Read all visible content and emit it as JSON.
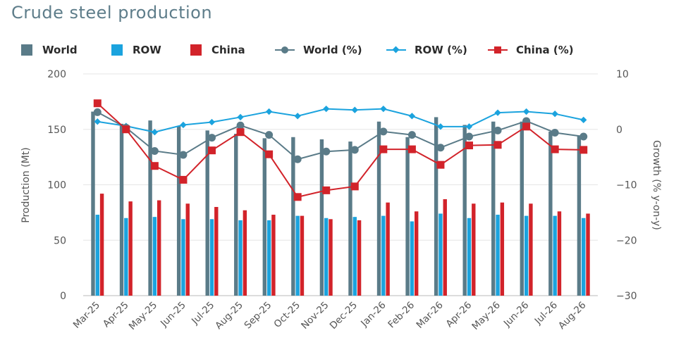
{
  "title": "Crude steel production",
  "colors": {
    "world": "#5a7b88",
    "row": "#1ba3de",
    "china": "#d2232a",
    "grid": "#e6e6e6",
    "axis_text": "#555555",
    "title": "#5e7d8a"
  },
  "legend": [
    {
      "label": "World",
      "kind": "bar",
      "color": "#5a7b88"
    },
    {
      "label": "ROW",
      "kind": "bar",
      "color": "#1ba3de"
    },
    {
      "label": "China",
      "kind": "bar",
      "color": "#d2232a"
    },
    {
      "label": "World (%)",
      "kind": "line",
      "marker": "circle",
      "color": "#5a7b88"
    },
    {
      "label": "ROW (%)",
      "kind": "line",
      "marker": "diamond",
      "color": "#1ba3de"
    },
    {
      "label": "China (%)",
      "kind": "line",
      "marker": "square",
      "color": "#d2232a"
    }
  ],
  "chart_data": {
    "type": "bar",
    "title": "Crude steel production",
    "categories": [
      "Mar-25",
      "Apr-25",
      "May-25",
      "Jun-25",
      "Jul-25",
      "Aug-25",
      "Sep-25",
      "Oct-25",
      "Nov-25",
      "Dec-25",
      "Jan-26",
      "Feb-26",
      "Mar-26",
      "Apr-26",
      "May-26",
      "Jun-26",
      "Jul-26",
      "Aug-26"
    ],
    "ylabel": "Production (Mt)",
    "y2label": "Growth (% y-on-y)",
    "ylim": [
      0,
      200
    ],
    "yticks": [
      "0",
      "50",
      "100",
      "150",
      "200"
    ],
    "y2lim": [
      -30,
      10
    ],
    "y2ticks": [
      "−30",
      "−20",
      "−10",
      "0",
      "10"
    ],
    "grid": true,
    "legend_position": "top",
    "series": [
      {
        "name": "World",
        "type": "bar",
        "axis": "left",
        "values": [
          166,
          155,
          158,
          153,
          149,
          146,
          142,
          143,
          141,
          139,
          157,
          143,
          161,
          154,
          157,
          157,
          148,
          144
        ]
      },
      {
        "name": "ROW",
        "type": "bar",
        "axis": "left",
        "values": [
          73,
          70,
          71,
          69,
          69,
          68,
          68,
          72,
          70,
          71,
          72,
          67,
          74,
          70,
          73,
          72,
          72,
          70
        ]
      },
      {
        "name": "China",
        "type": "bar",
        "axis": "left",
        "values": [
          92,
          85,
          86,
          83,
          80,
          77,
          73,
          72,
          69,
          68,
          84,
          76,
          87,
          83,
          84,
          83,
          76,
          74
        ]
      },
      {
        "name": "World (%)",
        "type": "line",
        "axis": "right",
        "marker": "circle",
        "values": [
          3.1,
          0.3,
          -3.9,
          -4.6,
          -1.5,
          0.7,
          -1.0,
          -5.4,
          -4.0,
          -3.7,
          -0.4,
          -1.0,
          -3.3,
          -1.3,
          -0.2,
          1.5,
          -0.6,
          -1.3
        ]
      },
      {
        "name": "ROW (%)",
        "type": "line",
        "axis": "right",
        "marker": "diamond",
        "values": [
          1.4,
          0.6,
          -0.5,
          0.8,
          1.3,
          2.2,
          3.2,
          2.4,
          3.7,
          3.5,
          3.7,
          2.4,
          0.5,
          0.5,
          3.0,
          3.2,
          2.8,
          1.7
        ]
      },
      {
        "name": "China (%)",
        "type": "line",
        "axis": "right",
        "marker": "square",
        "values": [
          4.7,
          0.0,
          -6.6,
          -9.1,
          -3.8,
          -0.5,
          -4.5,
          -12.2,
          -11.0,
          -10.3,
          -3.6,
          -3.6,
          -6.4,
          -2.9,
          -2.8,
          0.5,
          -3.6,
          -3.7
        ]
      }
    ]
  }
}
